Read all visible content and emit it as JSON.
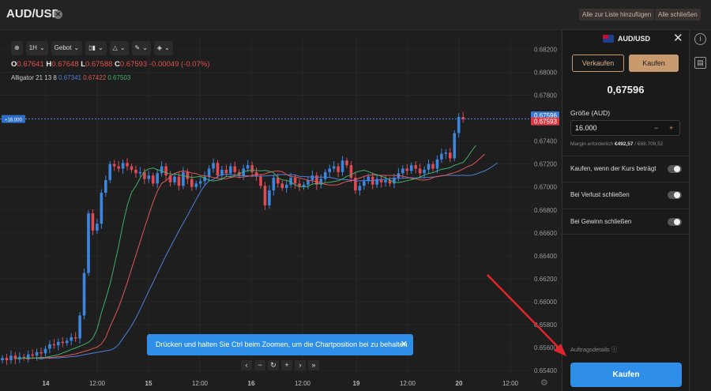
{
  "header": {
    "symbol": "AUD/USD",
    "add_all": "Alle zur Liste hinzufügen",
    "close_all": "Alle schließen"
  },
  "toolbar": {
    "timeframe": "1H",
    "price_type": "Gebot"
  },
  "ohlc": {
    "o_label": "O",
    "o": "0.67641",
    "h_label": "H",
    "h": "0.67648",
    "l_label": "L",
    "l": "0.67588",
    "c_label": "C",
    "c": "0.67593",
    "chg": "-0.00049 (-0.07%)"
  },
  "alligator": {
    "label": "Alligator 21 13 8",
    "v1": "0.67341",
    "v2": "0.67422",
    "v3": "0.67503",
    "c1": "#4f7fd8",
    "c2": "#e05656",
    "c3": "#3fb06a"
  },
  "tooltip": {
    "text": "Drücken und halten Sie Ctrl beim Zoomen, um die Chartposition bei zu behalten",
    "close": "✕"
  },
  "nav": {
    "left": "‹",
    "zoom_out": "−",
    "reset": "↻",
    "zoom_in": "+",
    "right": "›",
    "end": "»"
  },
  "chart_data": {
    "type": "candlestick",
    "y_ticks": [
      "0.68200",
      "0.68000",
      "0.67800",
      "0.67600",
      "0.67400",
      "0.67200",
      "0.67000",
      "0.66800",
      "0.66600",
      "0.66400",
      "0.66200",
      "0.66000",
      "0.65800",
      "0.65600",
      "0.65400"
    ],
    "x_ticks": [
      "14",
      "12:00",
      "15",
      "12:00",
      "16",
      "12:00",
      "19",
      "12:00",
      "20",
      "12:00"
    ],
    "ylim": [
      0.6538,
      0.6832
    ],
    "current_bid": "0.67593",
    "current_ask": "0.67596",
    "position_label": "+16.000",
    "closes": [
      0.6551,
      0.6549,
      0.6553,
      0.655,
      0.6552,
      0.6551,
      0.6554,
      0.6553,
      0.6556,
      0.6555,
      0.6559,
      0.6563,
      0.6562,
      0.6565,
      0.6564,
      0.6566,
      0.6569,
      0.6568,
      0.6588,
      0.6625,
      0.6677,
      0.6662,
      0.6668,
      0.6695,
      0.6706,
      0.672,
      0.6718,
      0.6716,
      0.6721,
      0.6718,
      0.6715,
      0.6712,
      0.6713,
      0.6707,
      0.671,
      0.6703,
      0.6712,
      0.6718,
      0.671,
      0.6704,
      0.6709,
      0.6701,
      0.6713,
      0.6707,
      0.67,
      0.6703,
      0.6705,
      0.6709,
      0.6716,
      0.6721,
      0.671,
      0.6715,
      0.6712,
      0.6718,
      0.6713,
      0.671,
      0.6716,
      0.6719,
      0.6713,
      0.6709,
      0.6701,
      0.6684,
      0.6697,
      0.6708,
      0.6703,
      0.6699,
      0.6702,
      0.6708,
      0.6703,
      0.67,
      0.6702,
      0.6706,
      0.671,
      0.6702,
      0.6707,
      0.6713,
      0.6716,
      0.6718,
      0.6713,
      0.6723,
      0.6719,
      0.6708,
      0.6697,
      0.6701,
      0.6705,
      0.6709,
      0.6702,
      0.6707,
      0.6704,
      0.6706,
      0.6703,
      0.6708,
      0.6712,
      0.6716,
      0.6714,
      0.6719,
      0.6716,
      0.6712,
      0.6715,
      0.672,
      0.6716,
      0.6724,
      0.6729,
      0.673,
      0.6725,
      0.6747,
      0.6761,
      0.6759
    ]
  },
  "panel": {
    "symbol": "AUD/USD",
    "sell": "Verkaufen",
    "buy": "Kaufen",
    "price": "0,67596",
    "size_label": "Größe (AUD)",
    "size": "16.000",
    "minus": "−",
    "plus": "+",
    "margin_label": "Margin erforderlich",
    "margin_value": "€492,57",
    "margin_rest": "/ €68.709,52",
    "opt1": "Kaufen, wenn der Kurs beträgt",
    "opt2": "Bei Verlust schließen",
    "opt3": "Bei Gewinn schließen",
    "details": "Auftragsdetails ⓘ",
    "submit": "Kaufen"
  },
  "side": {
    "info": "i",
    "save": "▤"
  }
}
